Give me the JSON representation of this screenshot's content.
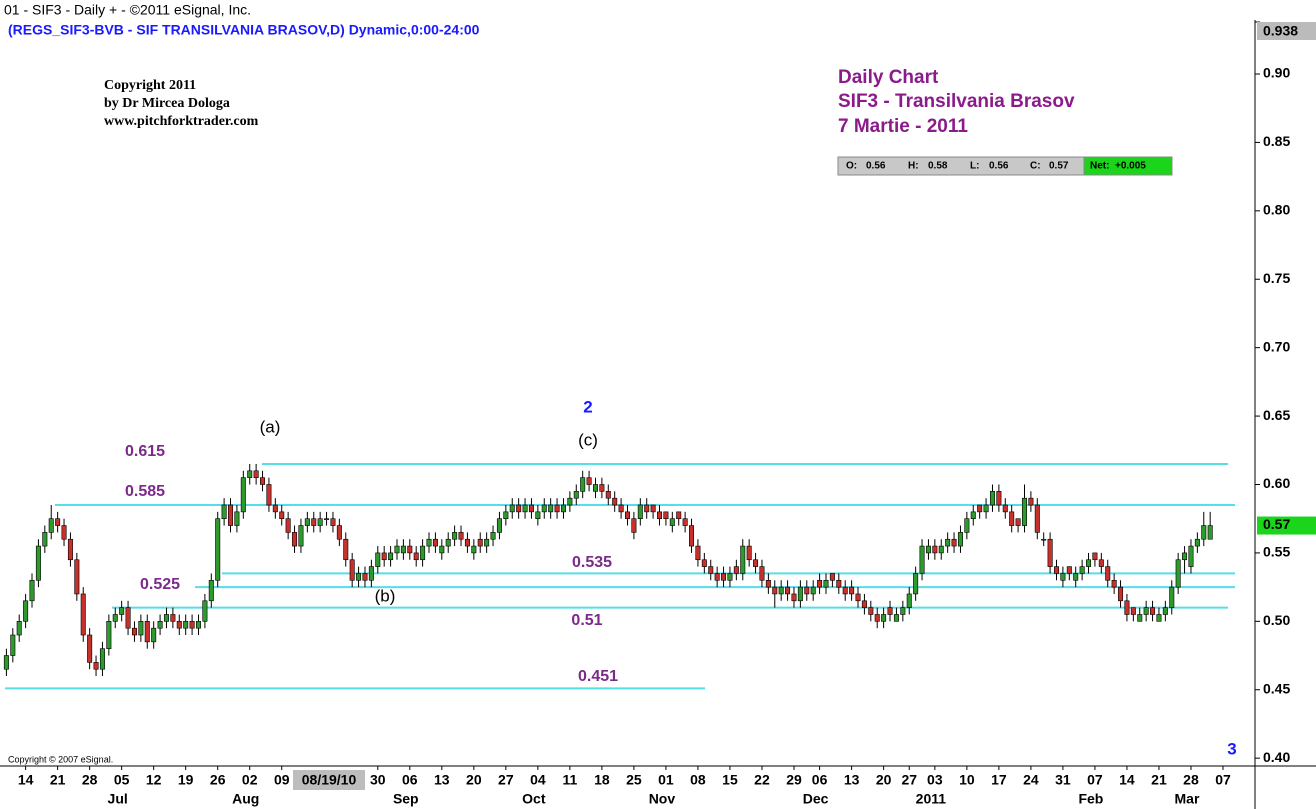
{
  "chart_data": {
    "type": "candlestick",
    "title_bar": "01 - SIF3 - Daily + - ©2011 eSignal, Inc.",
    "symbol_line": "(REGS_SIF3-BVB - SIF TRANSILVANIA BRASOV,D) Dynamic,0:00-24:00",
    "copyright": [
      "Copyright 2011",
      "by Dr Mircea Dologa",
      "www.pitchforktrader.com"
    ],
    "title": [
      "Daily Chart",
      "SIF3 - Transilvania Brasov",
      "7 Martie - 2011"
    ],
    "footer": "Copyright © 2007 eSignal.",
    "ohlc_box": {
      "labels": [
        "O:",
        "H:",
        "L:",
        "C:",
        "Net:"
      ],
      "open": 0.56,
      "high": 0.58,
      "low": 0.56,
      "close": 0.57,
      "net": {
        "value": 0.005,
        "label": "+0.005"
      }
    },
    "last_price": 0.57,
    "cursor_date": "08/19/10",
    "up_color": "#2e9a2e",
    "down_color": "#c8302c",
    "level_color": "#55dde8",
    "level_label_color": "#7b2a8a",
    "title_color": "#8b1a8b",
    "count_color": "#1a1aff",
    "ylim": [
      0.395,
      0.938
    ],
    "yticks": [
      {
        "value": 0.4,
        "label": "0.40"
      },
      0.45,
      {
        "value": 0.5,
        "label": "0.50"
      },
      0.55,
      {
        "value": 0.6,
        "label": "0.60"
      },
      0.65,
      {
        "value": 0.7,
        "label": "0.70"
      },
      0.75,
      {
        "value": 0.8,
        "label": "0.80"
      },
      0.85,
      {
        "value": 0.9,
        "label": "0.90"
      },
      0.938
    ],
    "xlim": [
      -1,
      195
    ],
    "xticks": [
      {
        "value": 3,
        "label": "14"
      },
      {
        "value": 8,
        "label": "21"
      },
      {
        "value": 13,
        "label": "28"
      },
      {
        "value": 18,
        "label": "05"
      },
      {
        "value": 23,
        "label": "12"
      },
      {
        "value": 28,
        "label": "19"
      },
      {
        "value": 33,
        "label": "26"
      },
      {
        "value": 38,
        "label": "02"
      },
      {
        "value": 43,
        "label": "09"
      },
      {
        "value": 58,
        "label": "30"
      },
      {
        "value": 63,
        "label": "06"
      },
      {
        "value": 68,
        "label": "13"
      },
      {
        "value": 73,
        "label": "20"
      },
      {
        "value": 78,
        "label": "27"
      },
      {
        "value": 83,
        "label": "04"
      },
      {
        "value": 88,
        "label": "11"
      },
      {
        "value": 93,
        "label": "18"
      },
      {
        "value": 98,
        "label": "25"
      },
      {
        "value": 103,
        "label": "01"
      },
      {
        "value": 108,
        "label": "08"
      },
      {
        "value": 113,
        "label": "15"
      },
      {
        "value": 118,
        "label": "22"
      },
      {
        "value": 123,
        "label": "29"
      },
      {
        "value": 127,
        "label": "06"
      },
      {
        "value": 132,
        "label": "13"
      },
      {
        "value": 137,
        "label": "20"
      },
      {
        "value": 141,
        "label": "27"
      },
      {
        "value": 145,
        "label": "03"
      },
      {
        "value": 150,
        "label": "10"
      },
      {
        "value": 155,
        "label": "17"
      },
      {
        "value": 160,
        "label": "24"
      },
      {
        "value": 165,
        "label": "31"
      },
      {
        "value": 170,
        "label": "07"
      },
      {
        "value": 175,
        "label": "14"
      },
      {
        "value": 180,
        "label": "21"
      },
      {
        "value": 185,
        "label": "28"
      },
      {
        "value": 190,
        "label": "07"
      }
    ],
    "months": [
      {
        "value": 18,
        "label": "Jul"
      },
      {
        "value": 38,
        "label": "Aug"
      },
      {
        "value": 63,
        "label": "Sep"
      },
      {
        "value": 83,
        "label": "Oct"
      },
      {
        "value": 103,
        "label": "Nov"
      },
      {
        "value": 127,
        "label": "Dec"
      },
      {
        "value": 145,
        "label": "2011"
      },
      {
        "value": 170,
        "label": "Feb"
      },
      {
        "value": 185,
        "label": "Mar"
      }
    ],
    "levels": [
      0.615,
      0.585,
      0.535,
      0.525,
      0.51,
      0.451
    ],
    "wave_labels": [
      "(a)",
      "(b)",
      "(c)"
    ],
    "wave_counts": [
      "2",
      "3"
    ],
    "candles": [
      [
        0.465,
        0.48,
        0.46,
        0.475
      ],
      [
        0.475,
        0.495,
        0.47,
        0.49
      ],
      [
        0.49,
        0.505,
        0.485,
        0.5
      ],
      [
        0.5,
        0.52,
        0.495,
        0.515
      ],
      [
        0.515,
        0.535,
        0.51,
        0.53
      ],
      [
        0.53,
        0.56,
        0.525,
        0.555
      ],
      [
        0.555,
        0.57,
        0.55,
        0.565
      ],
      [
        0.565,
        0.585,
        0.56,
        0.575
      ],
      [
        0.575,
        0.58,
        0.565,
        0.57
      ],
      [
        0.57,
        0.575,
        0.555,
        0.56
      ],
      [
        0.56,
        0.565,
        0.54,
        0.545
      ],
      [
        0.545,
        0.55,
        0.515,
        0.52
      ],
      [
        0.52,
        0.525,
        0.485,
        0.49
      ],
      [
        0.49,
        0.495,
        0.465,
        0.47
      ],
      [
        0.47,
        0.475,
        0.46,
        0.465
      ],
      [
        0.465,
        0.485,
        0.46,
        0.48
      ],
      [
        0.48,
        0.505,
        0.475,
        0.5
      ],
      [
        0.5,
        0.51,
        0.495,
        0.505
      ],
      [
        0.505,
        0.515,
        0.5,
        0.51
      ],
      [
        0.51,
        0.515,
        0.49,
        0.495
      ],
      [
        0.495,
        0.5,
        0.485,
        0.49
      ],
      [
        0.49,
        0.505,
        0.485,
        0.5
      ],
      [
        0.5,
        0.505,
        0.48,
        0.485
      ],
      [
        0.485,
        0.5,
        0.48,
        0.495
      ],
      [
        0.495,
        0.505,
        0.49,
        0.5
      ],
      [
        0.5,
        0.51,
        0.495,
        0.505
      ],
      [
        0.505,
        0.51,
        0.495,
        0.5
      ],
      [
        0.5,
        0.505,
        0.49,
        0.495
      ],
      [
        0.495,
        0.505,
        0.49,
        0.5
      ],
      [
        0.5,
        0.505,
        0.49,
        0.495
      ],
      [
        0.495,
        0.505,
        0.49,
        0.5
      ],
      [
        0.5,
        0.52,
        0.495,
        0.515
      ],
      [
        0.515,
        0.535,
        0.51,
        0.53
      ],
      [
        0.53,
        0.58,
        0.525,
        0.575
      ],
      [
        0.575,
        0.59,
        0.57,
        0.585
      ],
      [
        0.585,
        0.59,
        0.565,
        0.57
      ],
      [
        0.57,
        0.585,
        0.565,
        0.58
      ],
      [
        0.58,
        0.61,
        0.575,
        0.605
      ],
      [
        0.605,
        0.615,
        0.6,
        0.61
      ],
      [
        0.61,
        0.615,
        0.6,
        0.605
      ],
      [
        0.605,
        0.61,
        0.595,
        0.6
      ],
      [
        0.6,
        0.605,
        0.58,
        0.585
      ],
      [
        0.585,
        0.59,
        0.575,
        0.58
      ],
      [
        0.58,
        0.585,
        0.57,
        0.575
      ],
      [
        0.575,
        0.58,
        0.56,
        0.565
      ],
      [
        0.565,
        0.57,
        0.55,
        0.555
      ],
      [
        0.555,
        0.575,
        0.55,
        0.57
      ],
      [
        0.57,
        0.58,
        0.565,
        0.575
      ],
      [
        0.575,
        0.58,
        0.565,
        0.57
      ],
      [
        0.57,
        0.58,
        0.565,
        0.575
      ],
      [
        0.575,
        0.58,
        0.57,
        0.575
      ],
      [
        0.575,
        0.58,
        0.565,
        0.57
      ],
      [
        0.57,
        0.575,
        0.555,
        0.56
      ],
      [
        0.56,
        0.565,
        0.54,
        0.545
      ],
      [
        0.545,
        0.55,
        0.525,
        0.53
      ],
      [
        0.53,
        0.54,
        0.525,
        0.535
      ],
      [
        0.535,
        0.54,
        0.525,
        0.53
      ],
      [
        0.53,
        0.545,
        0.525,
        0.54
      ],
      [
        0.54,
        0.555,
        0.535,
        0.55
      ],
      [
        0.55,
        0.555,
        0.54,
        0.545
      ],
      [
        0.545,
        0.555,
        0.54,
        0.55
      ],
      [
        0.55,
        0.56,
        0.545,
        0.555
      ],
      [
        0.55,
        0.56,
        0.545,
        0.555
      ],
      [
        0.555,
        0.56,
        0.545,
        0.55
      ],
      [
        0.55,
        0.555,
        0.54,
        0.545
      ],
      [
        0.545,
        0.56,
        0.54,
        0.555
      ],
      [
        0.555,
        0.565,
        0.55,
        0.56
      ],
      [
        0.56,
        0.565,
        0.55,
        0.555
      ],
      [
        0.55,
        0.56,
        0.545,
        0.555
      ],
      [
        0.555,
        0.565,
        0.55,
        0.56
      ],
      [
        0.56,
        0.57,
        0.555,
        0.565
      ],
      [
        0.565,
        0.57,
        0.555,
        0.56
      ],
      [
        0.56,
        0.565,
        0.55,
        0.555
      ],
      [
        0.55,
        0.56,
        0.545,
        0.555
      ],
      [
        0.56,
        0.565,
        0.55,
        0.555
      ],
      [
        0.555,
        0.565,
        0.55,
        0.56
      ],
      [
        0.56,
        0.57,
        0.555,
        0.565
      ],
      [
        0.565,
        0.58,
        0.56,
        0.575
      ],
      [
        0.575,
        0.585,
        0.57,
        0.58
      ],
      [
        0.58,
        0.59,
        0.575,
        0.585
      ],
      [
        0.585,
        0.59,
        0.575,
        0.58
      ],
      [
        0.58,
        0.59,
        0.575,
        0.585
      ],
      [
        0.585,
        0.59,
        0.575,
        0.58
      ],
      [
        0.575,
        0.585,
        0.57,
        0.58
      ],
      [
        0.58,
        0.59,
        0.575,
        0.585
      ],
      [
        0.58,
        0.59,
        0.575,
        0.585
      ],
      [
        0.585,
        0.59,
        0.575,
        0.58
      ],
      [
        0.58,
        0.59,
        0.575,
        0.585
      ],
      [
        0.585,
        0.595,
        0.58,
        0.59
      ],
      [
        0.59,
        0.6,
        0.585,
        0.595
      ],
      [
        0.595,
        0.61,
        0.59,
        0.605
      ],
      [
        0.605,
        0.61,
        0.595,
        0.6
      ],
      [
        0.595,
        0.605,
        0.59,
        0.6
      ],
      [
        0.6,
        0.605,
        0.59,
        0.595
      ],
      [
        0.595,
        0.6,
        0.585,
        0.59
      ],
      [
        0.59,
        0.595,
        0.58,
        0.585
      ],
      [
        0.585,
        0.59,
        0.575,
        0.58
      ],
      [
        0.58,
        0.585,
        0.57,
        0.575
      ],
      [
        0.575,
        0.58,
        0.56,
        0.565
      ],
      [
        0.575,
        0.59,
        0.57,
        0.585
      ],
      [
        0.585,
        0.59,
        0.575,
        0.58
      ],
      [
        0.585,
        0.585,
        0.575,
        0.58
      ],
      [
        0.58,
        0.585,
        0.57,
        0.575
      ],
      [
        0.58,
        0.58,
        0.57,
        0.575
      ],
      [
        0.57,
        0.58,
        0.565,
        0.575
      ],
      [
        0.58,
        0.58,
        0.57,
        0.575
      ],
      [
        0.575,
        0.58,
        0.565,
        0.57
      ],
      [
        0.57,
        0.575,
        0.55,
        0.555
      ],
      [
        0.555,
        0.56,
        0.54,
        0.545
      ],
      [
        0.545,
        0.55,
        0.535,
        0.54
      ],
      [
        0.54,
        0.545,
        0.53,
        0.535
      ],
      [
        0.535,
        0.54,
        0.525,
        0.53
      ],
      [
        0.535,
        0.54,
        0.525,
        0.53
      ],
      [
        0.53,
        0.54,
        0.525,
        0.535
      ],
      [
        0.54,
        0.545,
        0.53,
        0.535
      ],
      [
        0.535,
        0.56,
        0.53,
        0.555
      ],
      [
        0.555,
        0.56,
        0.54,
        0.545
      ],
      [
        0.545,
        0.55,
        0.535,
        0.54
      ],
      [
        0.54,
        0.545,
        0.525,
        0.53
      ],
      [
        0.53,
        0.535,
        0.52,
        0.525
      ],
      [
        0.525,
        0.53,
        0.51,
        0.52
      ],
      [
        0.52,
        0.53,
        0.515,
        0.525
      ],
      [
        0.525,
        0.53,
        0.515,
        0.52
      ],
      [
        0.52,
        0.525,
        0.51,
        0.515
      ],
      [
        0.515,
        0.53,
        0.51,
        0.525
      ],
      [
        0.525,
        0.53,
        0.515,
        0.52
      ],
      [
        0.52,
        0.53,
        0.515,
        0.525
      ],
      [
        0.53,
        0.535,
        0.52,
        0.525
      ],
      [
        0.525,
        0.535,
        0.52,
        0.53
      ],
      [
        0.535,
        0.535,
        0.525,
        0.53
      ],
      [
        0.53,
        0.535,
        0.52,
        0.525
      ],
      [
        0.525,
        0.53,
        0.515,
        0.52
      ],
      [
        0.525,
        0.53,
        0.515,
        0.52
      ],
      [
        0.52,
        0.525,
        0.51,
        0.515
      ],
      [
        0.515,
        0.52,
        0.505,
        0.51
      ],
      [
        0.51,
        0.515,
        0.5,
        0.505
      ],
      [
        0.505,
        0.51,
        0.495,
        0.5
      ],
      [
        0.5,
        0.51,
        0.495,
        0.505
      ],
      [
        0.51,
        0.515,
        0.5,
        0.505
      ],
      [
        0.5,
        0.51,
        0.5,
        0.505
      ],
      [
        0.505,
        0.515,
        0.5,
        0.51
      ],
      [
        0.51,
        0.525,
        0.505,
        0.52
      ],
      [
        0.52,
        0.54,
        0.515,
        0.535
      ],
      [
        0.535,
        0.56,
        0.53,
        0.555
      ],
      [
        0.55,
        0.56,
        0.545,
        0.555
      ],
      [
        0.555,
        0.56,
        0.545,
        0.55
      ],
      [
        0.55,
        0.56,
        0.545,
        0.555
      ],
      [
        0.555,
        0.565,
        0.55,
        0.56
      ],
      [
        0.56,
        0.565,
        0.55,
        0.555
      ],
      [
        0.555,
        0.57,
        0.55,
        0.565
      ],
      [
        0.565,
        0.58,
        0.56,
        0.575
      ],
      [
        0.575,
        0.585,
        0.57,
        0.58
      ],
      [
        0.585,
        0.585,
        0.575,
        0.58
      ],
      [
        0.58,
        0.59,
        0.575,
        0.585
      ],
      [
        0.585,
        0.6,
        0.58,
        0.595
      ],
      [
        0.595,
        0.6,
        0.58,
        0.585
      ],
      [
        0.585,
        0.59,
        0.575,
        0.58
      ],
      [
        0.58,
        0.585,
        0.565,
        0.57
      ],
      [
        0.575,
        0.575,
        0.565,
        0.57
      ],
      [
        0.57,
        0.6,
        0.565,
        0.59
      ],
      [
        0.59,
        0.595,
        0.58,
        0.585
      ],
      [
        0.585,
        0.59,
        0.56,
        0.565
      ],
      [
        0.56,
        0.565,
        0.555,
        0.56
      ],
      [
        0.56,
        0.565,
        0.535,
        0.54
      ],
      [
        0.54,
        0.545,
        0.53,
        0.535
      ],
      [
        0.53,
        0.54,
        0.525,
        0.535
      ],
      [
        0.54,
        0.54,
        0.53,
        0.535
      ],
      [
        0.53,
        0.54,
        0.525,
        0.535
      ],
      [
        0.535,
        0.545,
        0.53,
        0.54
      ],
      [
        0.54,
        0.55,
        0.535,
        0.545
      ],
      [
        0.55,
        0.55,
        0.54,
        0.545
      ],
      [
        0.545,
        0.55,
        0.535,
        0.54
      ],
      [
        0.54,
        0.545,
        0.525,
        0.53
      ],
      [
        0.53,
        0.535,
        0.52,
        0.525
      ],
      [
        0.525,
        0.53,
        0.51,
        0.515
      ],
      [
        0.515,
        0.52,
        0.5,
        0.505
      ],
      [
        0.51,
        0.51,
        0.5,
        0.505
      ],
      [
        0.5,
        0.51,
        0.5,
        0.505
      ],
      [
        0.505,
        0.515,
        0.5,
        0.51
      ],
      [
        0.51,
        0.515,
        0.5,
        0.505
      ],
      [
        0.5,
        0.51,
        0.5,
        0.505
      ],
      [
        0.505,
        0.515,
        0.5,
        0.51
      ],
      [
        0.51,
        0.53,
        0.505,
        0.525
      ],
      [
        0.525,
        0.55,
        0.52,
        0.545
      ],
      [
        0.545,
        0.555,
        0.535,
        0.55
      ],
      [
        0.54,
        0.56,
        0.535,
        0.555
      ],
      [
        0.555,
        0.565,
        0.55,
        0.56
      ],
      [
        0.56,
        0.58,
        0.555,
        0.57
      ],
      [
        0.56,
        0.58,
        0.56,
        0.57
      ]
    ]
  }
}
